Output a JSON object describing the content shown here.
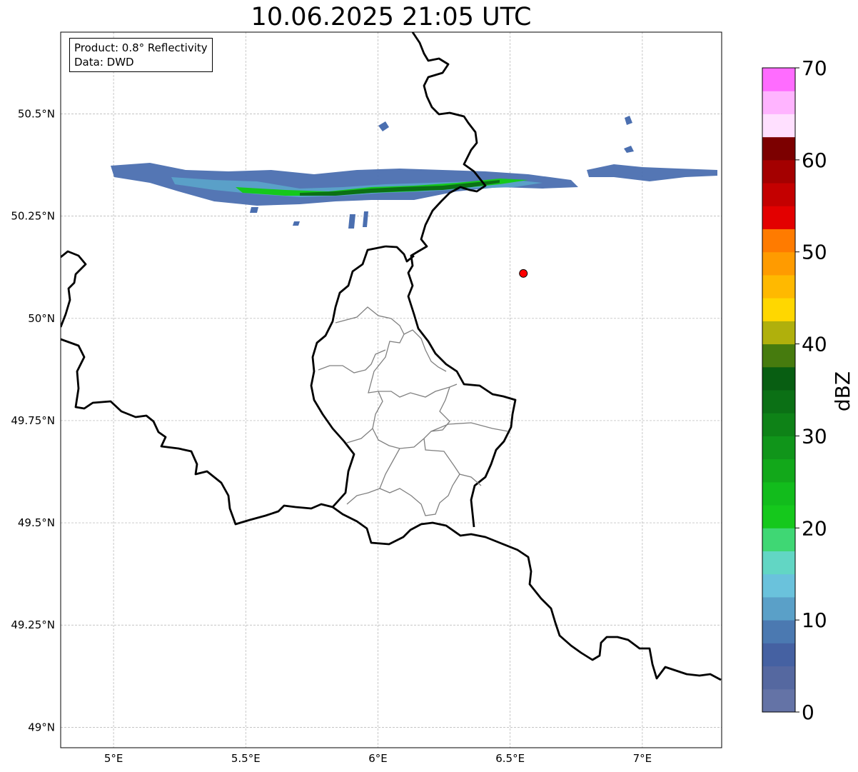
{
  "title": "10.06.2025 21:05 UTC",
  "info": {
    "product": "Product: 0.8° Reflectivity",
    "data": "Data: DWD"
  },
  "map": {
    "lon_range": [
      4.8,
      7.3
    ],
    "lat_range": [
      48.95,
      50.7
    ],
    "x_ticks": [
      {
        "value": 5.0,
        "label": "5°E"
      },
      {
        "value": 5.5,
        "label": "5.5°E"
      },
      {
        "value": 6.0,
        "label": "6°E"
      },
      {
        "value": 6.5,
        "label": "6.5°E"
      },
      {
        "value": 7.0,
        "label": "7°E"
      }
    ],
    "y_ticks": [
      {
        "value": 50.5,
        "label": "50.5°N"
      },
      {
        "value": 50.25,
        "label": "50.25°N"
      },
      {
        "value": 50.0,
        "label": "50°N"
      },
      {
        "value": 49.75,
        "label": "49.75°N"
      },
      {
        "value": 49.5,
        "label": "49.5°N"
      },
      {
        "value": 49.25,
        "label": "49.25°N"
      },
      {
        "value": 49.0,
        "label": "49°N"
      }
    ],
    "gridlines": true,
    "marker": {
      "lon": 6.55,
      "lat": 50.11,
      "color": "#ff0000"
    }
  },
  "colorbar": {
    "label": "dBZ",
    "min": 0,
    "max": 70,
    "step": 2.5,
    "tick_labels": [
      "0",
      "10",
      "20",
      "30",
      "40",
      "50",
      "60",
      "70"
    ],
    "tick_values": [
      0,
      10,
      20,
      30,
      40,
      50,
      60,
      70
    ],
    "colors": [
      "#6473a6",
      "#5568a0",
      "#4561a2",
      "#4b79b1",
      "#5aa0c8",
      "#6ac2dc",
      "#62d6c4",
      "#3fd774",
      "#15c81c",
      "#12bc1c",
      "#12a81a",
      "#10951a",
      "#0e8217",
      "#0b7015",
      "#085e12",
      "#467b0e",
      "#b0b00c",
      "#ffd700",
      "#ffb900",
      "#ff9b00",
      "#ff7b00",
      "#e30000",
      "#c40000",
      "#a40000",
      "#7c0000",
      "#ffe0ff",
      "#ffb4ff",
      "#ff6cff",
      "#ea32ea"
    ]
  }
}
